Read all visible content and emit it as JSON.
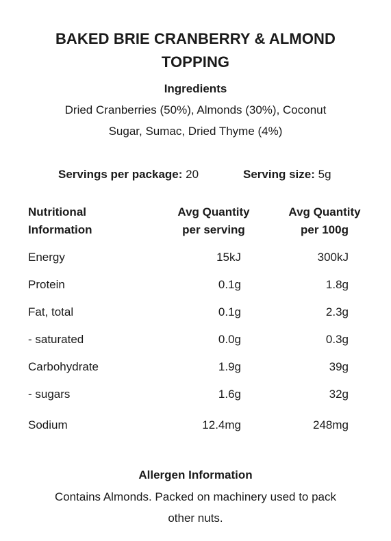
{
  "title_line1": "BAKED BRIE CRANBERRY & ALMOND",
  "title_line2": "TOPPING",
  "ingredients": {
    "heading": "Ingredients",
    "line1": "Dried Cranberries (50%), Almonds (30%), Coconut",
    "line2": "Sugar, Sumac, Dried Thyme (4%)"
  },
  "servings": {
    "per_package_label": "Servings per package:",
    "per_package_value": "20",
    "size_label": "Serving size:",
    "size_value": "5g"
  },
  "table": {
    "headers": {
      "name_line1": "Nutritional",
      "name_line2": "Information",
      "serving_line1": "Avg Quantity",
      "serving_line2": "per serving",
      "per100_line1": "Avg Quantity",
      "per100_line2": "per 100g"
    },
    "rows": [
      {
        "name": "Energy",
        "per_serving": "15kJ",
        "per_100g": "300kJ"
      },
      {
        "name": "Protein",
        "per_serving": "0.1g",
        "per_100g": "1.8g"
      },
      {
        "name": "Fat, total",
        "per_serving": "0.1g",
        "per_100g": "2.3g"
      },
      {
        "name": "- saturated",
        "per_serving": "0.0g",
        "per_100g": "0.3g"
      },
      {
        "name": "Carbohydrate",
        "per_serving": "1.9g",
        "per_100g": "39g"
      },
      {
        "name": "- sugars",
        "per_serving": "1.6g",
        "per_100g": "32g"
      },
      {
        "name": "Sodium",
        "per_serving": "12.4mg",
        "per_100g": "248mg"
      }
    ]
  },
  "allergen": {
    "heading": "Allergen Information",
    "line1": "Contains Almonds. Packed on machinery used to pack",
    "line2": "other nuts."
  }
}
